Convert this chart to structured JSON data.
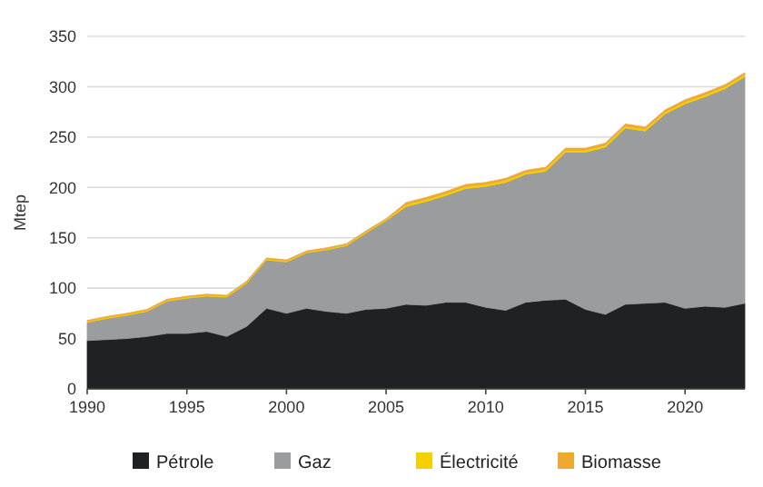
{
  "chart_data": {
    "type": "area",
    "stacked": true,
    "ylabel": "Mtep",
    "x": [
      1990,
      1991,
      1992,
      1993,
      1994,
      1995,
      1996,
      1997,
      1998,
      1999,
      2000,
      2001,
      2002,
      2003,
      2004,
      2005,
      2006,
      2007,
      2008,
      2009,
      2010,
      2011,
      2012,
      2013,
      2014,
      2015,
      2016,
      2017,
      2018,
      2019,
      2020,
      2021,
      2022,
      2023
    ],
    "series": [
      {
        "name": "Pétrole",
        "color": "#1f2124",
        "values": [
          48,
          49,
          50,
          52,
          55,
          55,
          57,
          52,
          62,
          80,
          75,
          80,
          77,
          75,
          79,
          80,
          84,
          83,
          86,
          86,
          81,
          78,
          86,
          88,
          89,
          79,
          74,
          84,
          85,
          86,
          80,
          82,
          81,
          85
        ]
      },
      {
        "name": "Gaz",
        "color": "#9a9c9d",
        "values": [
          18,
          21,
          23,
          25,
          32,
          35,
          35,
          39,
          43,
          48,
          51,
          55,
          61,
          67,
          76,
          87,
          97,
          103,
          106,
          113,
          120,
          127,
          127,
          128,
          146,
          156,
          166,
          175,
          171,
          187,
          203,
          208,
          217,
          225
        ]
      },
      {
        "name": "Électricité",
        "color": "#f5d000",
        "values": [
          1,
          1,
          1,
          1,
          1,
          1,
          1,
          1,
          1,
          1,
          1,
          1,
          1,
          1,
          1,
          1,
          2,
          2,
          2,
          2,
          2,
          2,
          2,
          2,
          2,
          2,
          2,
          2,
          2,
          2,
          2,
          2,
          2,
          2
        ]
      },
      {
        "name": "Biomasse",
        "color": "#f0a830",
        "values": [
          1,
          1,
          1,
          1,
          1,
          1,
          1,
          1,
          1,
          1,
          1,
          1,
          1,
          1,
          1,
          1,
          2,
          2,
          2,
          2,
          2,
          2,
          2,
          2,
          2,
          2,
          2,
          2,
          2,
          2,
          2,
          2,
          2,
          2
        ]
      }
    ],
    "xlim": [
      1990,
      2023
    ],
    "xticks": [
      1990,
      1995,
      2000,
      2005,
      2010,
      2015,
      2020
    ],
    "ylim": [
      0,
      350
    ],
    "yticks": [
      0,
      50,
      100,
      150,
      200,
      250,
      300,
      350
    ],
    "grid": "y",
    "legend": "bottom"
  }
}
